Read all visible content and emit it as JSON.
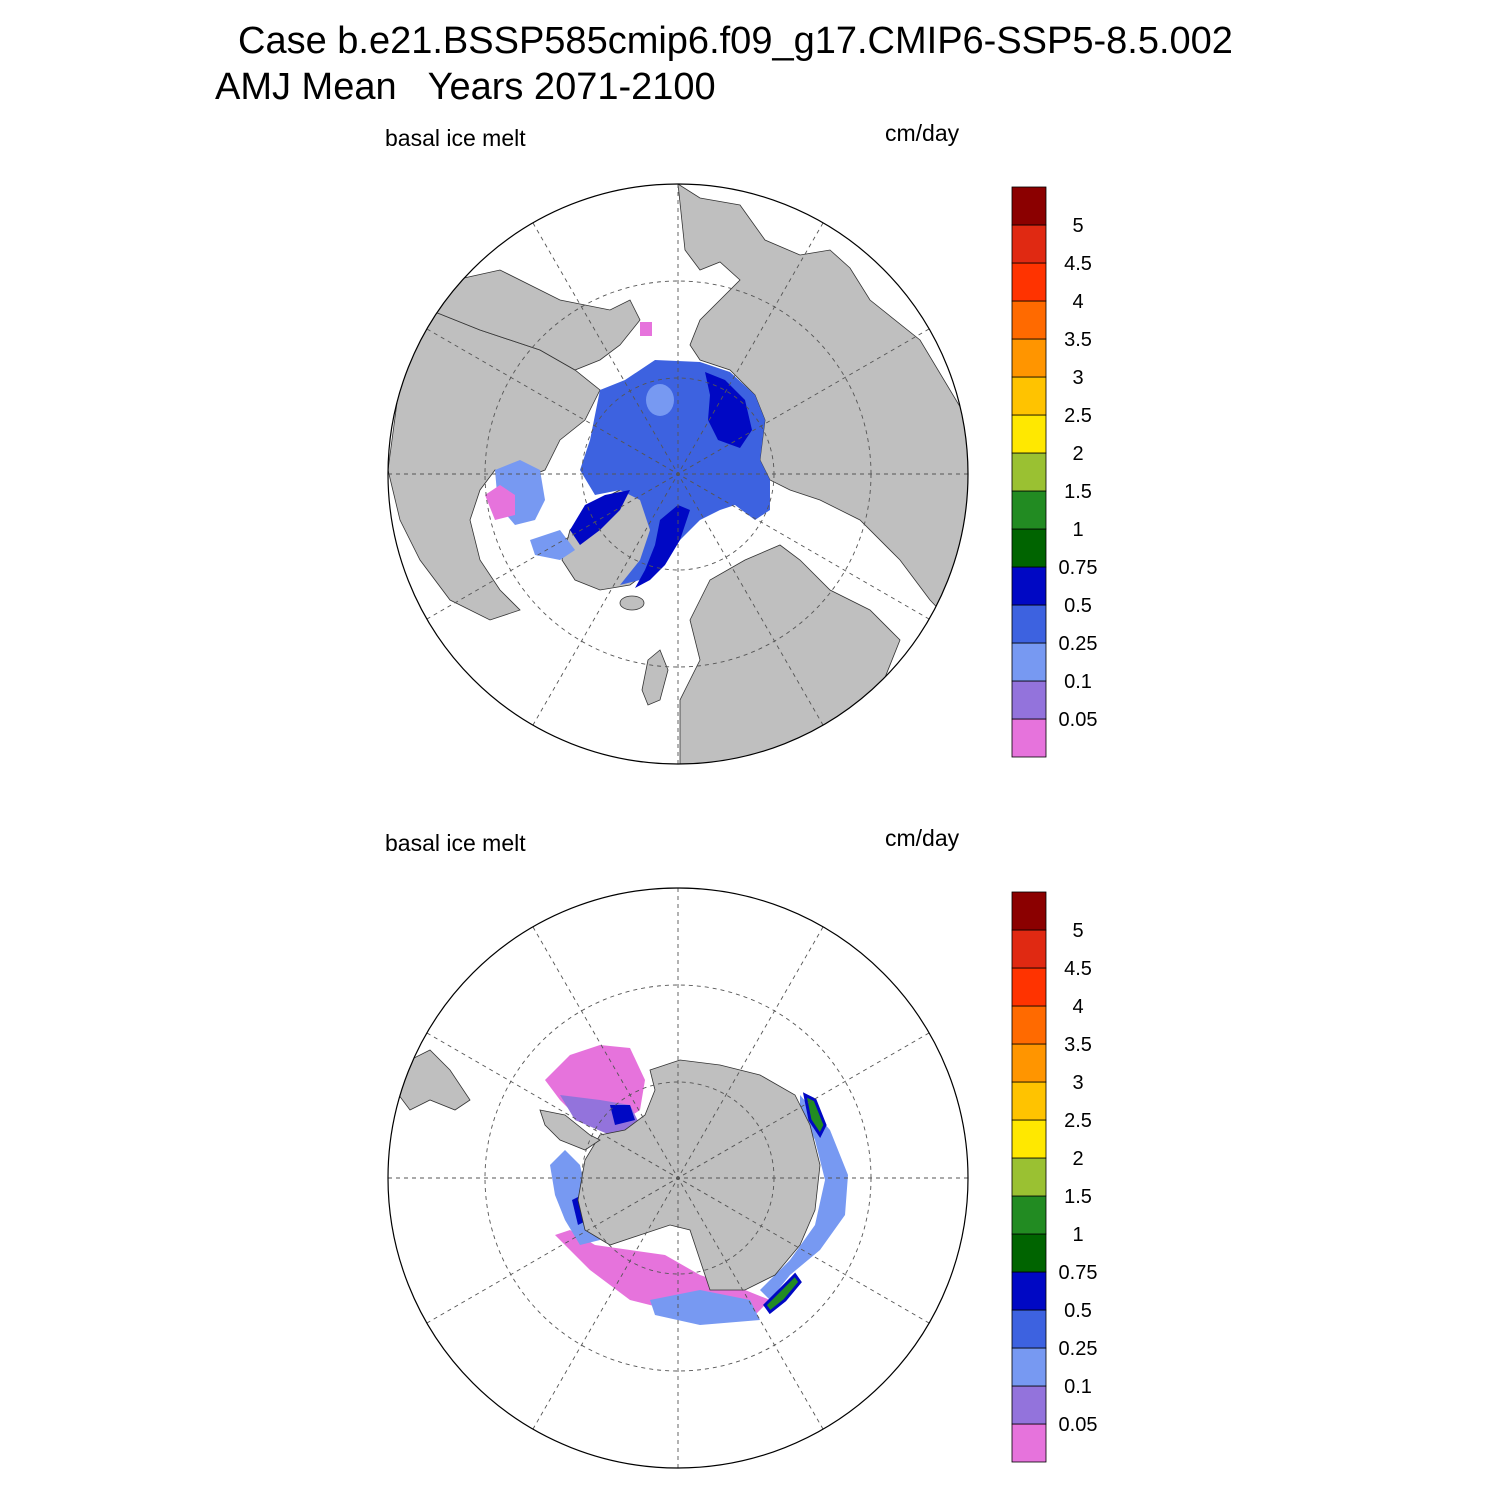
{
  "title": {
    "line1": "Case b.e21.BSSP585cmip6.f09_g17.CMIP6-SSP5-8.5.002",
    "line2": "AMJ Mean   Years 2071-2100"
  },
  "panels": [
    {
      "id": "north",
      "left_label": "basal ice melt",
      "right_label": "cm/day",
      "hemisphere": "north"
    },
    {
      "id": "south",
      "left_label": "basal ice melt",
      "right_label": "cm/day",
      "hemisphere": "south"
    }
  ],
  "colorbar": {
    "levels": [
      "0.05",
      "0.1",
      "0.25",
      "0.5",
      "0.75",
      "1",
      "1.5",
      "2",
      "2.5",
      "3",
      "3.5",
      "4",
      "4.5",
      "5"
    ],
    "colors": [
      "#e673dc",
      "#9373dc",
      "#7799f2",
      "#3d62e0",
      "#0008c4",
      "#006400",
      "#228b22",
      "#9ac132",
      "#ffe800",
      "#ffc300",
      "#ff9500",
      "#ff6a00",
      "#ff3300",
      "#e02912",
      "#8b0000"
    ]
  },
  "map_colors": {
    "land": "#bfbfbf",
    "ocean": "#ffffff",
    "grid": "#555555"
  }
}
